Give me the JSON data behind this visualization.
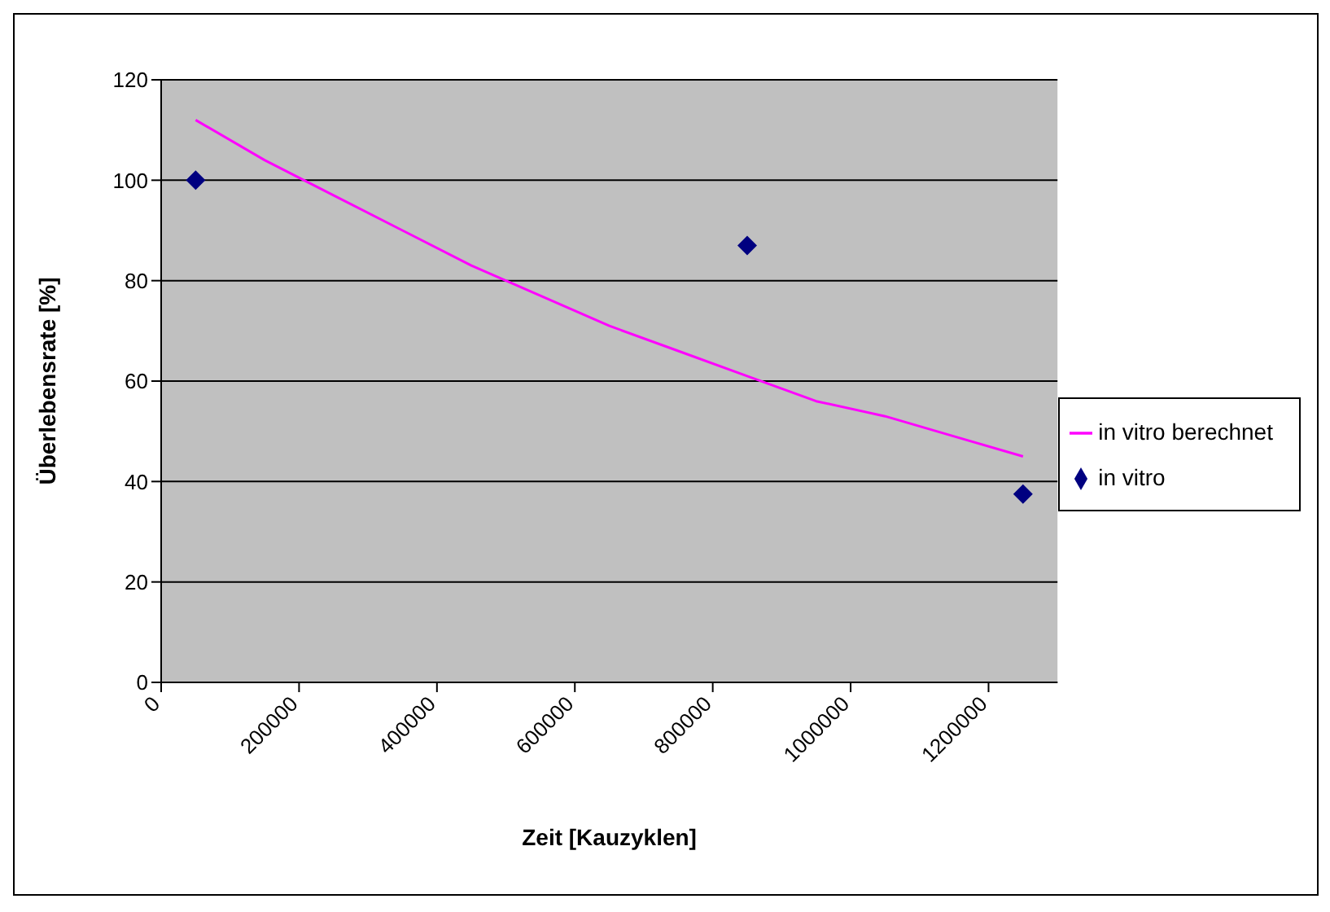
{
  "chart_data": {
    "type": "line",
    "xlabel": "Zeit [Kauzyklen]",
    "ylabel": "Überlebensrate [%]",
    "xlim": [
      0,
      1300000
    ],
    "xticks": [
      0,
      200000,
      400000,
      600000,
      800000,
      1000000,
      1200000
    ],
    "ylim": [
      0,
      120
    ],
    "yticks": [
      0,
      20,
      40,
      60,
      80,
      100,
      120
    ],
    "grid": "y",
    "legend": "right",
    "series": [
      {
        "name": "in vitro berechnet",
        "color": "#ff00ff",
        "marker": "none",
        "x": [
          50000,
          150000,
          250000,
          350000,
          450000,
          550000,
          650000,
          750000,
          850000,
          950000,
          1050000,
          1150000,
          1250000
        ],
        "values": [
          112,
          104,
          97,
          90,
          83,
          77,
          71,
          66,
          61,
          56,
          53,
          49,
          45
        ]
      },
      {
        "name": "in vitro",
        "type": "scatter",
        "color": "#000080",
        "marker": "diamond",
        "x": [
          50000,
          850000,
          1250000
        ],
        "values": [
          100,
          87,
          37.5
        ]
      }
    ]
  }
}
